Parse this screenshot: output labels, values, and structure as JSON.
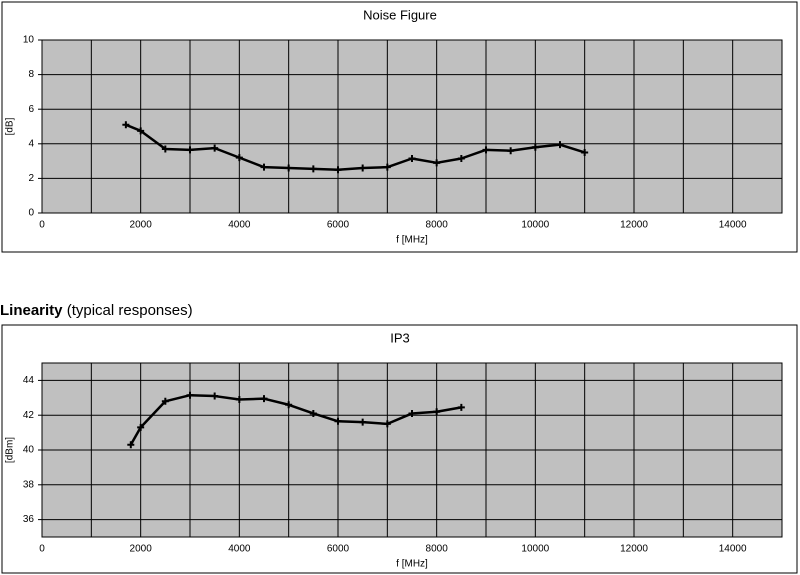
{
  "chart_data": [
    {
      "type": "line",
      "title": "Noise Figure",
      "xlabel": "f [MHz]",
      "ylabel": "[dB]",
      "x": [
        1700,
        2000,
        2500,
        3000,
        3500,
        4000,
        4500,
        5000,
        5500,
        6000,
        6500,
        7000,
        7500,
        8000,
        8500,
        9000,
        9500,
        10000,
        10500,
        11000
      ],
      "values": [
        5.1,
        4.75,
        3.7,
        3.65,
        3.75,
        3.2,
        2.65,
        2.6,
        2.55,
        2.5,
        2.6,
        2.65,
        3.15,
        2.9,
        3.15,
        3.65,
        3.6,
        3.8,
        3.95,
        3.5
      ],
      "color": "#000000",
      "xlim": [
        0,
        15000
      ],
      "xticks": [
        0,
        2000,
        4000,
        6000,
        8000,
        10000,
        12000,
        14000
      ],
      "xgrid_step": 1000,
      "ylim": [
        0,
        10
      ],
      "yticks": [
        0,
        2,
        4,
        6,
        8,
        10
      ],
      "grid": true,
      "background": "#c0c0c0"
    },
    {
      "type": "line",
      "title": "IP3",
      "xlabel": "f [MHz]",
      "ylabel": "[dBm]",
      "x": [
        1800,
        2000,
        2500,
        3000,
        3500,
        4000,
        4500,
        5000,
        5500,
        6000,
        6500,
        7000,
        7500,
        8000,
        8500
      ],
      "values": [
        40.3,
        41.3,
        42.8,
        43.15,
        43.1,
        42.9,
        42.95,
        42.6,
        42.1,
        41.65,
        41.6,
        41.5,
        42.1,
        42.2,
        42.45
      ],
      "color": "#000000",
      "xlim": [
        0,
        15000
      ],
      "xticks": [
        0,
        2000,
        4000,
        6000,
        8000,
        10000,
        12000,
        14000
      ],
      "xgrid_step": 1000,
      "ylim": [
        35,
        45
      ],
      "yticks": [
        36,
        38,
        40,
        42,
        44
      ],
      "grid": true,
      "background": "#c0c0c0"
    }
  ],
  "heading": {
    "bold": "Linearity",
    "normal": "(typical responses)"
  }
}
